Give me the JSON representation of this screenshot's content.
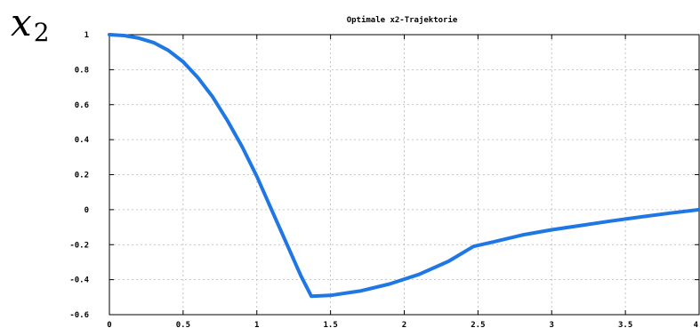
{
  "y_variable": {
    "base": "x",
    "subscript": "2"
  },
  "chart_data": {
    "type": "line",
    "title": "Optimale x2-Trajektorie",
    "xlabel": "",
    "ylabel": "",
    "xlim": [
      0,
      4
    ],
    "ylim": [
      -0.6,
      1
    ],
    "grid": true,
    "x_ticks": [
      0,
      0.5,
      1,
      1.5,
      2,
      2.5,
      3,
      3.5,
      4
    ],
    "x_tick_labels": [
      "0",
      "0.5",
      "1",
      "1.5",
      "2",
      "2.5",
      "3",
      "3.5",
      "4"
    ],
    "y_ticks": [
      -0.6,
      -0.4,
      -0.2,
      0,
      0.2,
      0.4,
      0.6,
      0.8,
      1
    ],
    "y_tick_labels": [
      "-0.6",
      "-0.4",
      "-0.2",
      "0",
      "0.2",
      "0.4",
      "0.6",
      "0.8",
      "1"
    ],
    "series": [
      {
        "color": "#1f77e4",
        "x": [
          0,
          0.1,
          0.2,
          0.3,
          0.4,
          0.5,
          0.6,
          0.7,
          0.8,
          0.9,
          1.0,
          1.1,
          1.2,
          1.3,
          1.37,
          1.5,
          1.7,
          1.9,
          2.1,
          2.3,
          2.47,
          2.6,
          2.8,
          3.0,
          3.2,
          3.4,
          3.6,
          3.8,
          4.0
        ],
        "y": [
          1.0,
          0.995,
          0.98,
          0.955,
          0.91,
          0.845,
          0.755,
          0.645,
          0.51,
          0.36,
          0.19,
          0.0,
          -0.19,
          -0.38,
          -0.495,
          -0.49,
          -0.465,
          -0.425,
          -0.37,
          -0.295,
          -0.21,
          -0.185,
          -0.145,
          -0.115,
          -0.09,
          -0.065,
          -0.042,
          -0.02,
          0.0
        ]
      }
    ]
  }
}
